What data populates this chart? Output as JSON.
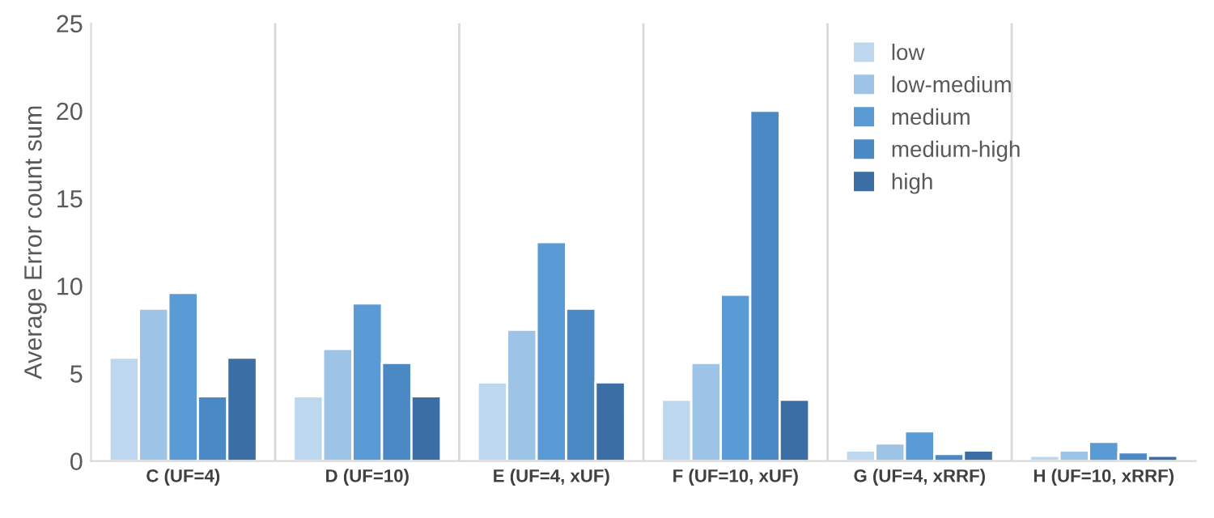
{
  "chart_data": {
    "type": "bar",
    "ylabel": "Average Error count sum",
    "categories": [
      "C (UF=4)",
      "D (UF=10)",
      "E (UF=4, xUF)",
      "F (UF=10, xUF)",
      "G (UF=4, xRRF)",
      "H (UF=10, xRRF)"
    ],
    "series": [
      {
        "name": "low",
        "color": "#bdd7ee",
        "values": [
          5.9,
          3.7,
          4.5,
          3.5,
          0.6,
          0.3
        ]
      },
      {
        "name": "low-medium",
        "color": "#9dc3e6",
        "values": [
          8.7,
          6.4,
          7.5,
          5.6,
          1.0,
          0.6
        ]
      },
      {
        "name": "medium",
        "color": "#5b9bd5",
        "values": [
          9.6,
          9.0,
          12.5,
          9.5,
          1.7,
          1.1
        ]
      },
      {
        "name": "medium-high",
        "color": "#4a89c4",
        "values": [
          3.7,
          5.6,
          8.7,
          20.0,
          0.4,
          0.5
        ]
      },
      {
        "name": "high",
        "color": "#3a6ea5",
        "values": [
          5.9,
          3.7,
          4.5,
          3.5,
          0.6,
          0.3
        ]
      }
    ],
    "ylim": [
      0,
      25
    ],
    "yticks": [
      0,
      5,
      10,
      15,
      20,
      25
    ],
    "grid": "x",
    "legend": "top right"
  }
}
